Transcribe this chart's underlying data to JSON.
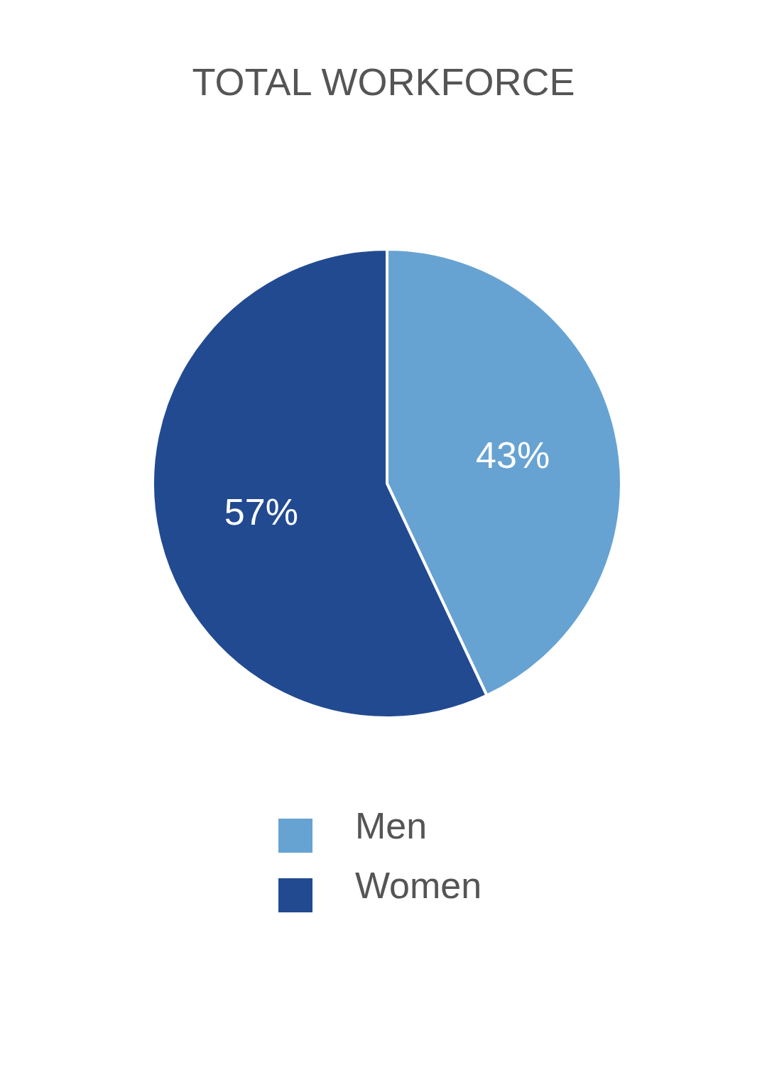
{
  "chart_data": {
    "type": "pie",
    "title": "TOTAL WORKFORCE",
    "categories": [
      "Men",
      "Women"
    ],
    "values": [
      43,
      57
    ],
    "colors": [
      "#67a3d2",
      "#224a91"
    ],
    "value_labels": [
      "43%",
      "57%"
    ],
    "legend": "bottom"
  }
}
